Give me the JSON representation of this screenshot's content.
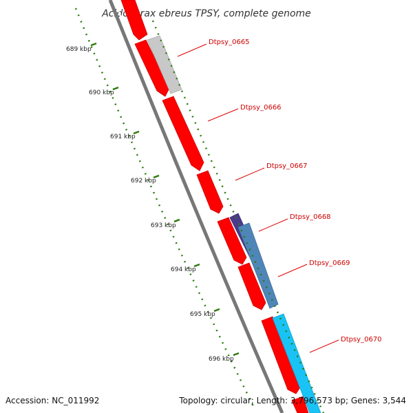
{
  "title": "Acidovorax ebreus TPSY, complete genome",
  "footer": {
    "accession": "Accession: NC_011992",
    "topology": "Topology: circular; Length: 3,796,573 bp; Genes: 3,544"
  },
  "scale_labels": [
    "689 kbp",
    "690 kbp",
    "691 kbp",
    "692 kbp",
    "693 kbp",
    "694 kbp",
    "695 kbp",
    "696 kbp"
  ],
  "genes": [
    {
      "label": "Dtpsy_0665"
    },
    {
      "label": "Dtpsy_0666"
    },
    {
      "label": "Dtpsy_0667"
    },
    {
      "label": "Dtpsy_0668"
    },
    {
      "label": "Dtpsy_0669"
    },
    {
      "label": "Dtpsy_0670"
    }
  ],
  "colors": {
    "cds_forward": "#ff0000",
    "cds_grey": "#c8c8c8",
    "cds_purple": "#4b3a8c",
    "cds_steel": "#4f86b8",
    "cds_cyan": "#19c3f5",
    "backbone": "#777777",
    "ticks": "#2b7a0b",
    "label_line": "#e00000"
  }
}
